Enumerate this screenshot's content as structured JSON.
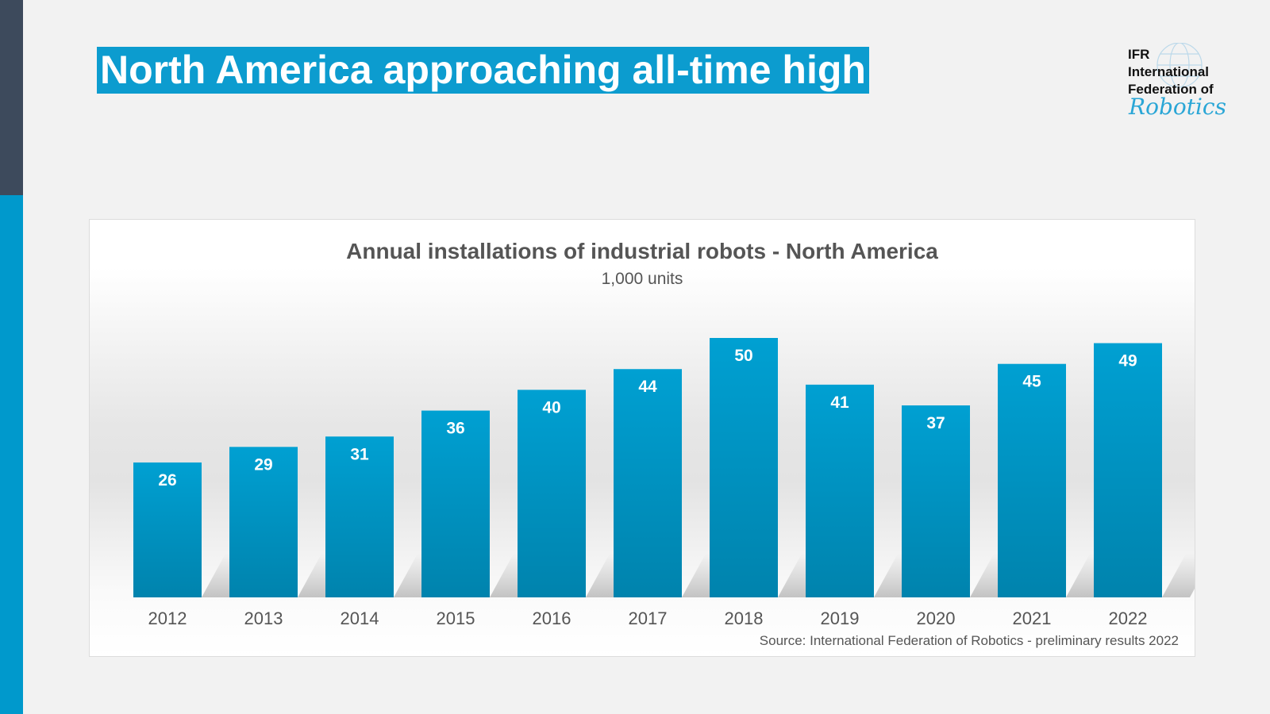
{
  "slide_title": "North America approaching all-time high",
  "logo": {
    "line1": "IFR",
    "line2": "International",
    "line3": "Federation of",
    "script": "Robotics"
  },
  "colors": {
    "bar": "#0099cc",
    "title_bg": "#0c9ccf",
    "stripe_dark": "#3d4a5c",
    "stripe_blue": "#0099cc"
  },
  "chart_data": {
    "type": "bar",
    "title": "Annual installations of industrial robots - North America",
    "subtitle": "1,000 units",
    "categories": [
      "2012",
      "2013",
      "2014",
      "2015",
      "2016",
      "2017",
      "2018",
      "2019",
      "2020",
      "2021",
      "2022"
    ],
    "values": [
      26,
      29,
      31,
      36,
      40,
      44,
      50,
      41,
      37,
      45,
      49
    ],
    "ylim": [
      0,
      50
    ],
    "grid": false,
    "data_labels": true,
    "source": "Source: International Federation of Robotics - preliminary results 2022"
  }
}
